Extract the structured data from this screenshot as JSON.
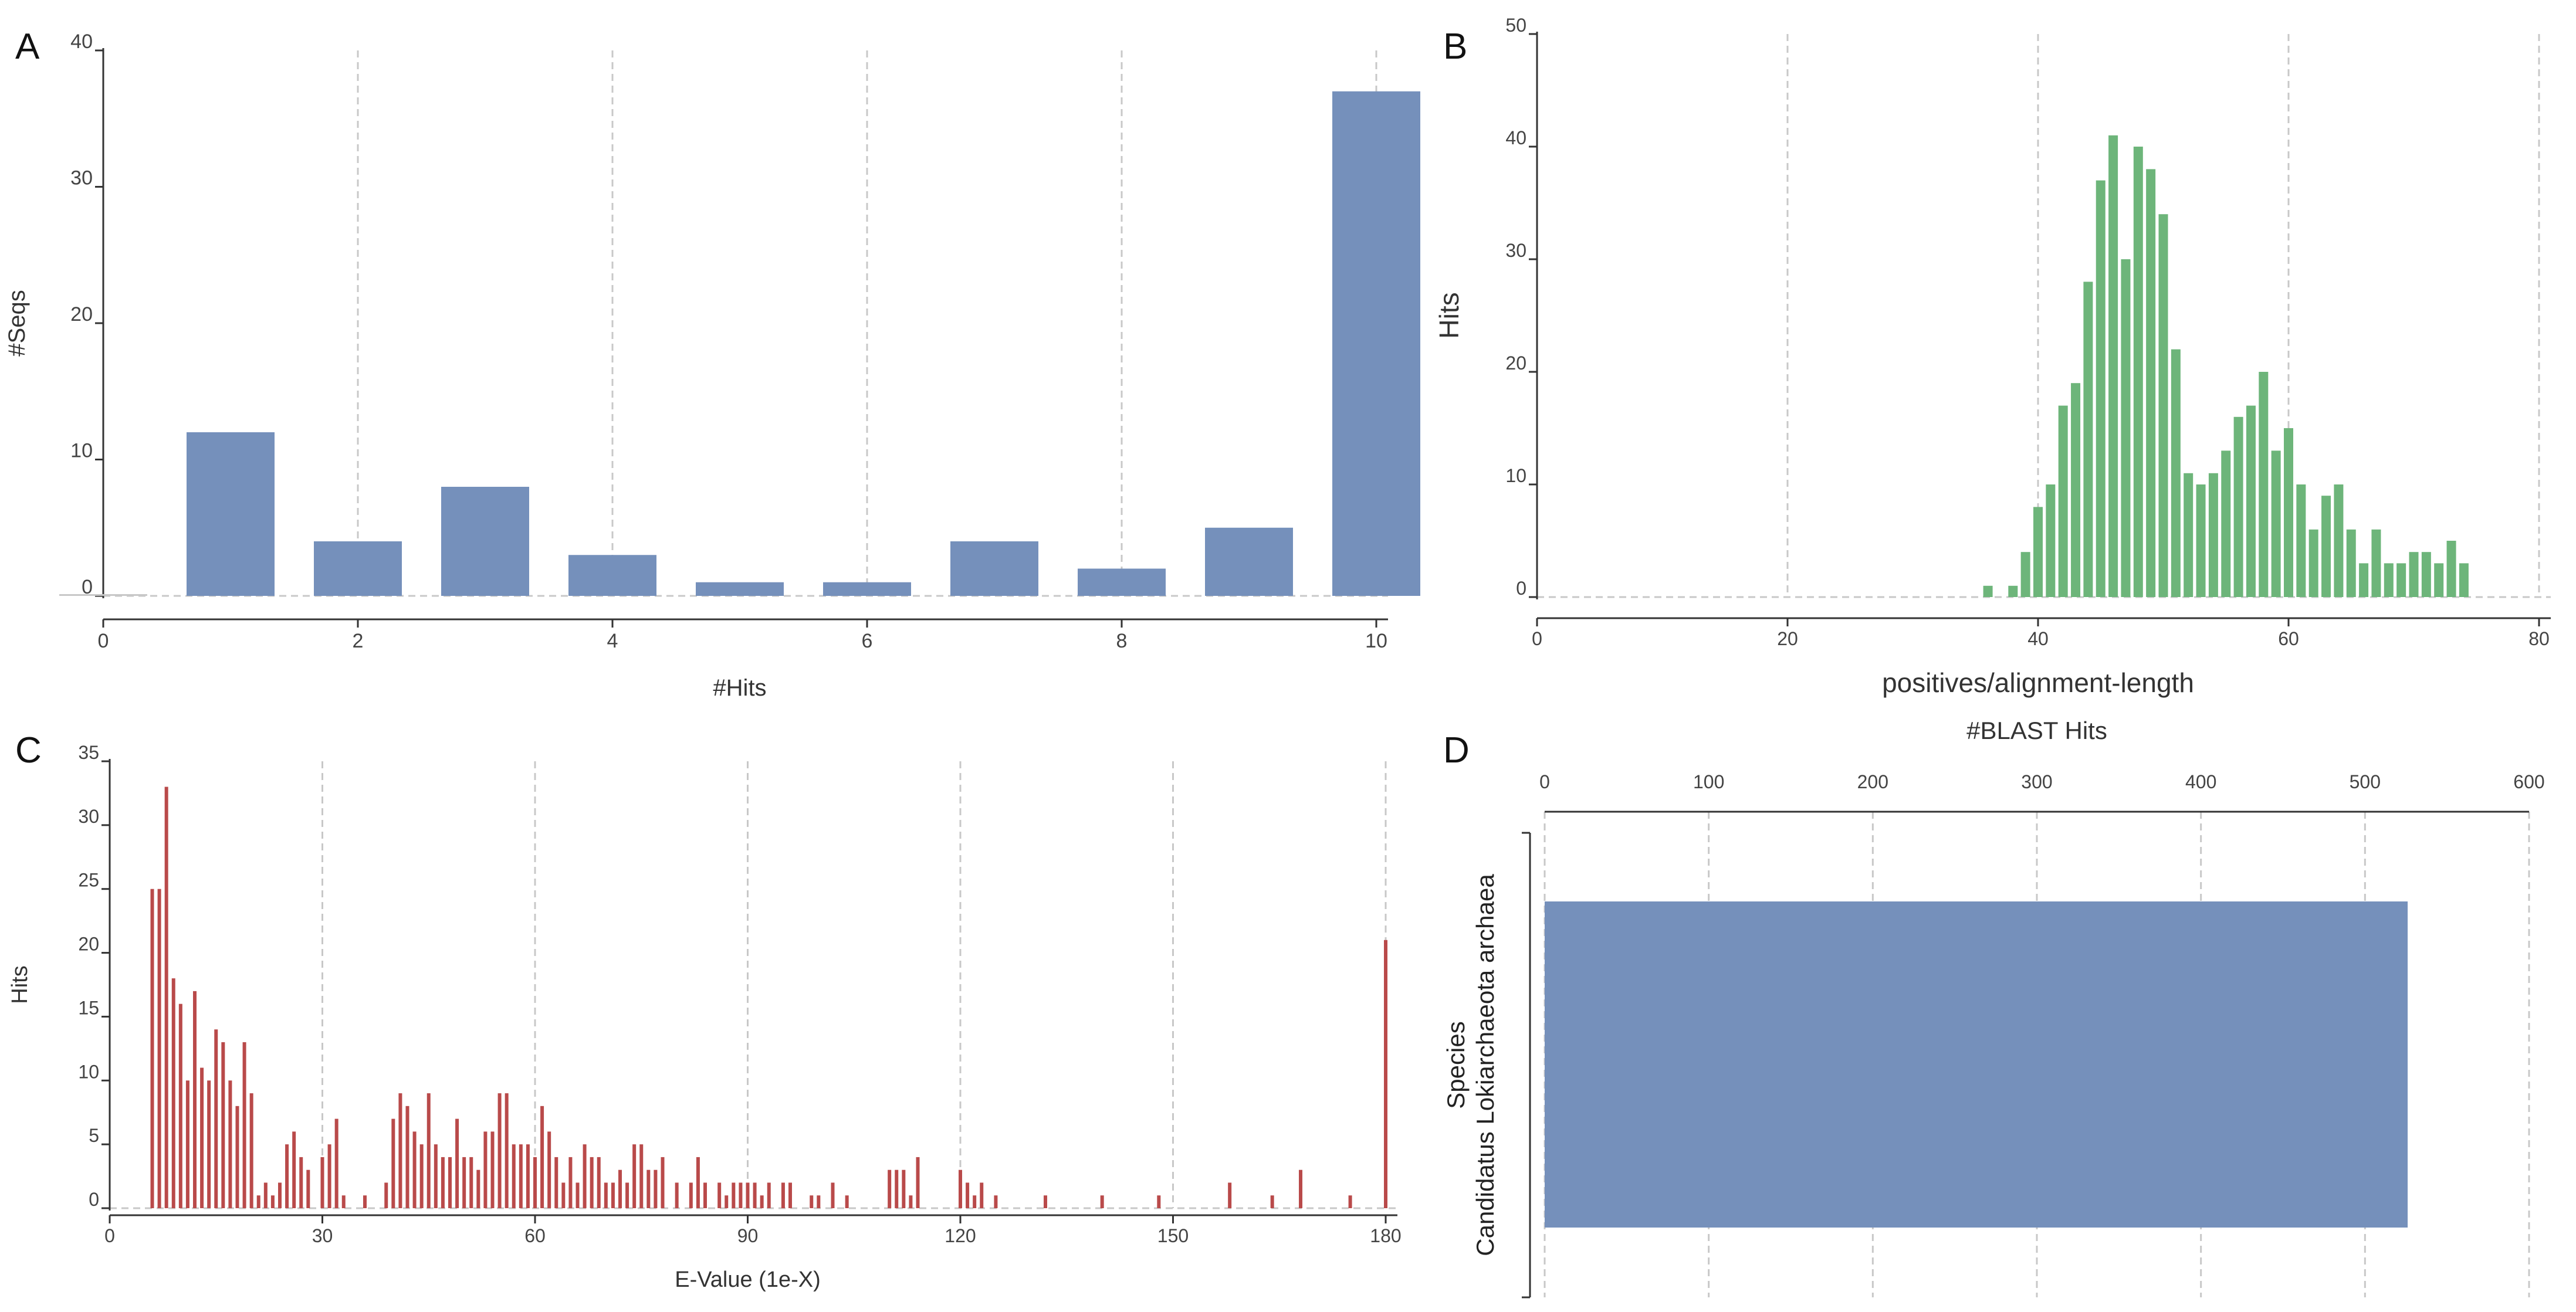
{
  "panel_labels": {
    "a": "A",
    "b": "B",
    "c": "C",
    "d": "D"
  },
  "colors": {
    "blue": "#7590bb",
    "green": "#6db57a",
    "red": "#b94a4a",
    "grid": "#c8c8c8",
    "axis": "#333333",
    "text": "#444444"
  },
  "chart_data": [
    {
      "id": "A",
      "type": "bar",
      "xlabel": "#Hits",
      "ylabel": "#Seqs",
      "xlim": [
        0,
        10
      ],
      "ylim": [
        0,
        40
      ],
      "x_ticks": [
        0,
        2,
        4,
        6,
        8,
        10
      ],
      "y_ticks": [
        0,
        10,
        20,
        30,
        40
      ],
      "grid": "vertical dashed",
      "categories": [
        0,
        1,
        2,
        3,
        4,
        5,
        6,
        7,
        8,
        9,
        10
      ],
      "values": [
        0,
        12,
        4,
        8,
        3,
        1,
        1,
        4,
        2,
        5,
        37
      ]
    },
    {
      "id": "B",
      "type": "bar",
      "xlabel": "positives/alignment-length",
      "ylabel": "Hits",
      "xlim": [
        0,
        80
      ],
      "ylim": [
        0,
        50
      ],
      "x_ticks": [
        0,
        20,
        40,
        60,
        80
      ],
      "y_ticks": [
        0,
        10,
        20,
        30,
        40,
        50
      ],
      "grid": "vertical dashed",
      "x": [
        36,
        38,
        39,
        40,
        41,
        42,
        43,
        44,
        45,
        46,
        47,
        48,
        49,
        50,
        51,
        52,
        53,
        54,
        55,
        56,
        57,
        58,
        59,
        60,
        61,
        62,
        63,
        64,
        65,
        66,
        67,
        68,
        69,
        70,
        71,
        72,
        73,
        74
      ],
      "values": [
        1,
        1,
        4,
        8,
        10,
        17,
        19,
        28,
        37,
        41,
        30,
        40,
        38,
        34,
        22,
        11,
        10,
        11,
        13,
        16,
        17,
        20,
        13,
        15,
        10,
        6,
        9,
        10,
        6,
        3,
        6,
        3,
        3,
        4,
        4,
        3,
        5,
        3
      ]
    },
    {
      "id": "C",
      "type": "bar",
      "xlabel": "E-Value (1e-X)",
      "ylabel": "Hits",
      "xlim": [
        0,
        180
      ],
      "ylim": [
        0,
        35
      ],
      "x_ticks": [
        0,
        30,
        60,
        90,
        120,
        150,
        180
      ],
      "y_ticks": [
        0,
        5,
        10,
        15,
        20,
        25,
        30,
        35
      ],
      "grid": "vertical dashed",
      "x": [
        6,
        7,
        8,
        9,
        10,
        11,
        12,
        13,
        14,
        15,
        16,
        17,
        18,
        19,
        20,
        21,
        22,
        23,
        24,
        25,
        26,
        27,
        28,
        30,
        31,
        32,
        33,
        36,
        39,
        40,
        41,
        42,
        43,
        44,
        45,
        46,
        47,
        48,
        49,
        50,
        51,
        52,
        53,
        54,
        55,
        56,
        57,
        58,
        59,
        60,
        61,
        62,
        63,
        64,
        65,
        66,
        67,
        68,
        69,
        70,
        71,
        72,
        73,
        74,
        75,
        76,
        77,
        78,
        80,
        82,
        83,
        84,
        86,
        87,
        88,
        89,
        90,
        91,
        92,
        93,
        95,
        96,
        99,
        100,
        102,
        104,
        110,
        111,
        112,
        113,
        114,
        120,
        121,
        122,
        123,
        125,
        132,
        140,
        148,
        158,
        164,
        168,
        175,
        180
      ],
      "values": [
        25,
        25,
        33,
        18,
        16,
        10,
        17,
        11,
        10,
        14,
        13,
        10,
        8,
        13,
        9,
        1,
        2,
        1,
        2,
        5,
        6,
        4,
        3,
        4,
        5,
        7,
        1,
        1,
        2,
        7,
        9,
        8,
        6,
        5,
        9,
        5,
        4,
        4,
        7,
        4,
        4,
        3,
        6,
        6,
        9,
        9,
        5,
        5,
        5,
        4,
        8,
        6,
        4,
        2,
        4,
        2,
        5,
        4,
        4,
        2,
        2,
        3,
        2,
        5,
        5,
        3,
        3,
        4,
        2,
        2,
        4,
        2,
        2,
        1,
        2,
        2,
        2,
        2,
        1,
        2,
        2,
        2,
        1,
        1,
        2,
        1,
        3,
        3,
        3,
        1,
        4,
        3,
        2,
        1,
        2,
        1,
        1,
        1,
        1,
        2,
        1,
        3,
        1,
        21
      ]
    },
    {
      "id": "D",
      "type": "bar",
      "orientation": "horizontal",
      "xlabel": "#BLAST Hits",
      "ylabel": "Species",
      "xlim": [
        0,
        600
      ],
      "x_ticks": [
        0,
        100,
        200,
        300,
        400,
        500,
        600
      ],
      "x_axis_position": "top",
      "grid": "vertical dashed",
      "categories": [
        "Candidatus Lokiarchaeota archaea"
      ],
      "values": [
        526
      ]
    }
  ]
}
